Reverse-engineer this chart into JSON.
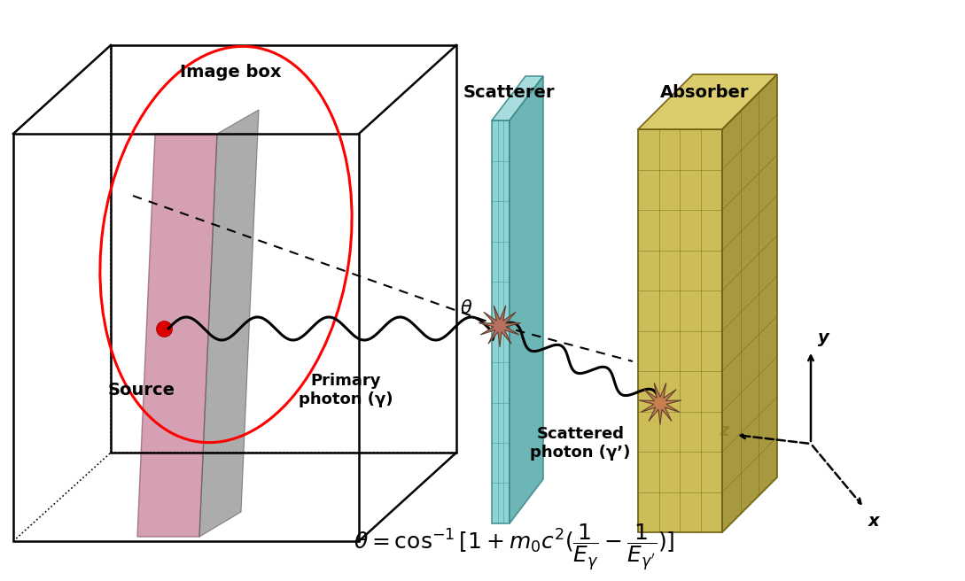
{
  "bg_color": "#ffffff",
  "box_color": "#000000",
  "scatterer_face_color": "#7ecece",
  "scatterer_top_color": "#9dd8d8",
  "scatterer_side_color": "#5aacac",
  "scatterer_edge_color": "#3a8a8a",
  "absorber_face_color": "#c8b84a",
  "absorber_top_color": "#d8c860",
  "absorber_side_color": "#a09030",
  "absorber_edge_color": "#706010",
  "pink_plane_color": "#c8809a",
  "gray_plane_color": "#808080",
  "source_color": "#dd0000",
  "label_imagebox": "Image box",
  "label_source": "Source",
  "label_primary": "Primary\nphoton (γ)",
  "label_scatterer": "Scatterer",
  "label_absorber": "Absorber",
  "label_scattered": "Scattered\nphoton (γ’)",
  "figsize": [
    10.89,
    6.56
  ],
  "dpi": 100
}
